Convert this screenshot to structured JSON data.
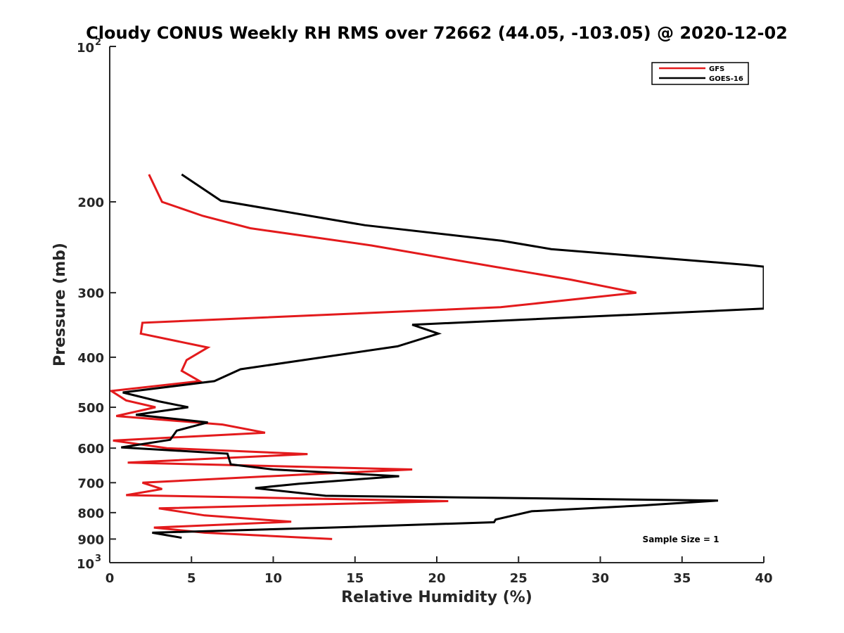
{
  "chart_data": {
    "type": "line",
    "title": "Cloudy CONUS Weekly RH RMS over 72662 (44.05, -103.05) @ 2020-12-02",
    "xlabel": "Relative Humidity (%)",
    "ylabel": "Pressure (mb)",
    "xlim": [
      0,
      40
    ],
    "ylim": [
      100,
      1000
    ],
    "y_scale": "log",
    "y_reversed": true,
    "x_ticks": [
      "0",
      "5",
      "10",
      "15",
      "20",
      "25",
      "30",
      "35",
      "40"
    ],
    "y_ticks": [
      {
        "value": 100,
        "base": "10",
        "exp": "2"
      },
      {
        "value": 200,
        "label": "200"
      },
      {
        "value": 300,
        "label": "300"
      },
      {
        "value": 400,
        "label": "400"
      },
      {
        "value": 500,
        "label": "500"
      },
      {
        "value": 600,
        "label": "600"
      },
      {
        "value": 700,
        "label": "700"
      },
      {
        "value": 800,
        "label": "800"
      },
      {
        "value": 900,
        "label": "900"
      },
      {
        "value": 1000,
        "base": "10",
        "exp": "3"
      }
    ],
    "grid": false,
    "legend_position": "top-right",
    "annotation": "Sample Size = 1",
    "series": [
      {
        "name": "GFS",
        "color": "#e31a1c",
        "points": [
          [
            2.4,
            177
          ],
          [
            3.2,
            200
          ],
          [
            5.7,
            213
          ],
          [
            8.6,
            225
          ],
          [
            16.0,
            243
          ],
          [
            23.5,
            267
          ],
          [
            28.2,
            283
          ],
          [
            32.2,
            300
          ],
          [
            23.9,
            320
          ],
          [
            2.0,
            343
          ],
          [
            1.9,
            360
          ],
          [
            6.0,
            383
          ],
          [
            4.7,
            405
          ],
          [
            4.4,
            425
          ],
          [
            5.5,
            445
          ],
          [
            0.1,
            465
          ],
          [
            1.0,
            485
          ],
          [
            2.8,
            500
          ],
          [
            0.4,
            520
          ],
          [
            6.9,
            540
          ],
          [
            9.5,
            560
          ],
          [
            0.2,
            580
          ],
          [
            3.5,
            600
          ],
          [
            12.1,
            616
          ],
          [
            1.1,
            640
          ],
          [
            18.5,
            660
          ],
          [
            11.8,
            675
          ],
          [
            2.0,
            700
          ],
          [
            3.2,
            720
          ],
          [
            1.0,
            740
          ],
          [
            20.7,
            760
          ],
          [
            3.0,
            785
          ],
          [
            5.8,
            810
          ],
          [
            11.1,
            833
          ],
          [
            2.7,
            855
          ],
          [
            5.8,
            875
          ],
          [
            13.6,
            900
          ]
        ]
      },
      {
        "name": "GOES-16",
        "color": "#000000",
        "points": [
          [
            4.4,
            177
          ],
          [
            6.8,
            199
          ],
          [
            15.6,
            222
          ],
          [
            24.0,
            238
          ],
          [
            27.0,
            247
          ],
          [
            39.0,
            265
          ],
          [
            40.0,
            267
          ],
          [
            40.0,
            322
          ],
          [
            18.5,
            346
          ],
          [
            20.1,
            360
          ],
          [
            17.6,
            381
          ],
          [
            8.0,
            422
          ],
          [
            6.4,
            445
          ],
          [
            0.8,
            468
          ],
          [
            3.0,
            487
          ],
          [
            4.8,
            500
          ],
          [
            1.6,
            517
          ],
          [
            6.0,
            535
          ],
          [
            4.1,
            555
          ],
          [
            3.7,
            578
          ],
          [
            0.7,
            598
          ],
          [
            7.2,
            615
          ],
          [
            7.4,
            645
          ],
          [
            10.0,
            660
          ],
          [
            17.7,
            680
          ],
          [
            11.6,
            703
          ],
          [
            8.9,
            717
          ],
          [
            13.2,
            742
          ],
          [
            37.2,
            758
          ],
          [
            32.5,
            775
          ],
          [
            25.8,
            795
          ],
          [
            23.6,
            825
          ],
          [
            23.5,
            835
          ],
          [
            13.5,
            855
          ],
          [
            2.6,
            875
          ],
          [
            4.4,
            895
          ]
        ]
      }
    ]
  }
}
